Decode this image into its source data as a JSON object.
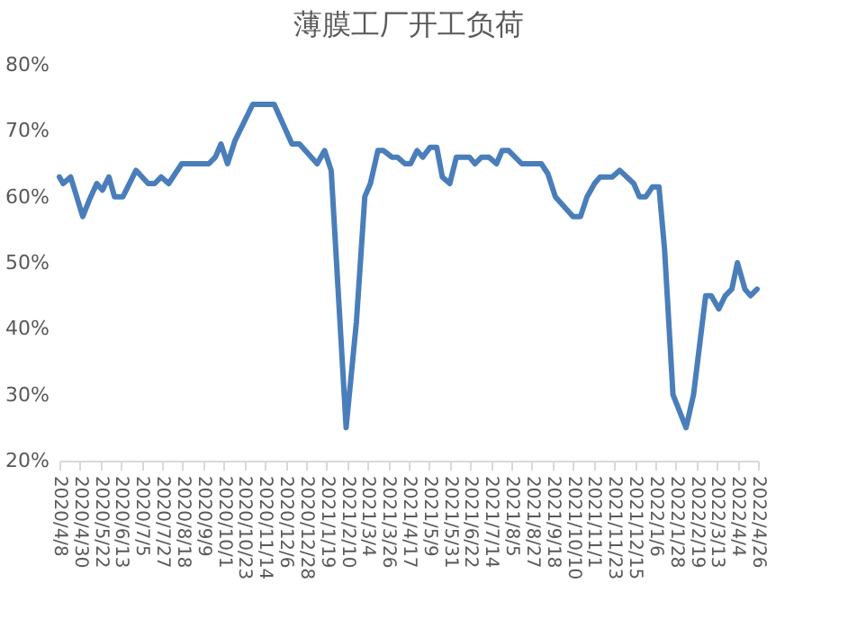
{
  "chart_data": {
    "type": "line",
    "title": "薄膜工厂开工负荷",
    "x": [
      "2020-04-08",
      "2020-04-12",
      "2020-04-20",
      "2020-05-03",
      "2020-05-10",
      "2020-05-18",
      "2020-05-24",
      "2020-05-31",
      "2020-06-06",
      "2020-06-15",
      "2020-06-29",
      "2020-07-12",
      "2020-07-19",
      "2020-07-26",
      "2020-08-03",
      "2020-08-17",
      "2020-09-15",
      "2020-09-22",
      "2020-09-28",
      "2020-10-05",
      "2020-10-13",
      "2020-11-01",
      "2020-11-24",
      "2020-12-13",
      "2020-12-21",
      "2021-01-09",
      "2021-01-17",
      "2021-01-24",
      "2021-02-09",
      "2021-02-20",
      "2021-03-01",
      "2021-03-07",
      "2021-03-15",
      "2021-03-21",
      "2021-03-30",
      "2021-04-05",
      "2021-04-13",
      "2021-04-19",
      "2021-04-26",
      "2021-05-02",
      "2021-05-10",
      "2021-05-17",
      "2021-05-23",
      "2021-05-31",
      "2021-06-07",
      "2021-06-14",
      "2021-06-21",
      "2021-06-27",
      "2021-07-04",
      "2021-07-12",
      "2021-07-20",
      "2021-07-26",
      "2021-08-02",
      "2021-08-16",
      "2021-09-06",
      "2021-09-13",
      "2021-09-21",
      "2021-10-10",
      "2021-10-18",
      "2021-10-25",
      "2021-11-02",
      "2021-11-08",
      "2021-11-21",
      "2021-11-29",
      "2021-12-14",
      "2021-12-20",
      "2021-12-27",
      "2022-01-03",
      "2022-01-10",
      "2022-01-16",
      "2022-01-25",
      "2022-02-08",
      "2022-02-16",
      "2022-03-01",
      "2022-03-07",
      "2022-03-15",
      "2022-03-22",
      "2022-03-29",
      "2022-04-04",
      "2022-04-12",
      "2022-04-18",
      "2022-04-25"
    ],
    "series": [
      {
        "color": "#4a7ebb",
        "values": [
          63,
          62,
          63,
          57,
          59.5,
          62,
          61,
          63,
          60,
          60,
          64,
          62,
          62,
          63,
          62,
          65,
          65,
          66,
          68,
          65,
          68.5,
          74,
          74,
          68,
          68,
          65,
          67,
          64,
          25,
          41,
          60,
          62,
          67,
          67,
          66,
          66,
          65,
          65,
          67,
          66,
          67.5,
          67.5,
          63,
          62,
          66,
          66,
          66,
          65,
          66,
          66,
          65,
          67,
          67,
          65,
          65,
          63.5,
          60,
          57,
          57,
          60,
          62,
          63,
          63,
          64,
          62,
          60,
          60,
          61.5,
          61.5,
          52,
          30,
          25,
          30,
          45,
          45,
          43,
          45,
          46,
          50,
          46,
          45,
          46
        ]
      }
    ],
    "xlim": [
      "2020-04-08",
      "2022-04-26"
    ],
    "xticks": [
      {
        "value": "2020-04-08",
        "label": "2020/4/8"
      },
      {
        "value": "2020-04-30",
        "label": "2020/4/30"
      },
      {
        "value": "2020-05-22",
        "label": "2020/5/22"
      },
      {
        "value": "2020-06-13",
        "label": "2020/6/13"
      },
      {
        "value": "2020-07-05",
        "label": "2020/7/5"
      },
      {
        "value": "2020-07-27",
        "label": "2020/7/27"
      },
      {
        "value": "2020-08-18",
        "label": "2020/8/18"
      },
      {
        "value": "2020-09-09",
        "label": "2020/9/9"
      },
      {
        "value": "2020-10-01",
        "label": "2020/10/1"
      },
      {
        "value": "2020-10-23",
        "label": "2020/10/23"
      },
      {
        "value": "2020-11-14",
        "label": "2020/11/14"
      },
      {
        "value": "2020-12-06",
        "label": "2020/12/6"
      },
      {
        "value": "2020-12-28",
        "label": "2020/12/28"
      },
      {
        "value": "2021-01-19",
        "label": "2021/1/19"
      },
      {
        "value": "2021-02-10",
        "label": "2021/2/10"
      },
      {
        "value": "2021-03-04",
        "label": "2021/3/4"
      },
      {
        "value": "2021-03-26",
        "label": "2021/3/26"
      },
      {
        "value": "2021-04-17",
        "label": "2021/4/17"
      },
      {
        "value": "2021-05-09",
        "label": "2021/5/9"
      },
      {
        "value": "2021-05-31",
        "label": "2021/5/31"
      },
      {
        "value": "2021-06-22",
        "label": "2021/6/22"
      },
      {
        "value": "2021-07-14",
        "label": "2021/7/14"
      },
      {
        "value": "2021-08-05",
        "label": "2021/8/5"
      },
      {
        "value": "2021-08-27",
        "label": "2021/8/27"
      },
      {
        "value": "2021-09-18",
        "label": "2021/9/18"
      },
      {
        "value": "2021-10-10",
        "label": "2021/10/10"
      },
      {
        "value": "2021-11-01",
        "label": "2021/11/1"
      },
      {
        "value": "2021-11-23",
        "label": "2021/11/23"
      },
      {
        "value": "2021-12-15",
        "label": "2021/12/15"
      },
      {
        "value": "2022-01-06",
        "label": "2022/1/6"
      },
      {
        "value": "2022-01-28",
        "label": "2022/1/28"
      },
      {
        "value": "2022-02-19",
        "label": "2022/2/19"
      },
      {
        "value": "2022-03-13",
        "label": "2022/3/13"
      },
      {
        "value": "2022-04-04",
        "label": "2022/4/4"
      },
      {
        "value": "2022-04-26",
        "label": "2022/4/26"
      }
    ],
    "ylim": [
      20,
      80
    ],
    "yticks": [
      {
        "value": 20,
        "label": "20%"
      },
      {
        "value": 30,
        "label": "30%"
      },
      {
        "value": 40,
        "label": "40%"
      },
      {
        "value": 50,
        "label": "50%"
      },
      {
        "value": 60,
        "label": "60%"
      },
      {
        "value": 70,
        "label": "70%"
      },
      {
        "value": 80,
        "label": "80%"
      }
    ],
    "grid": false,
    "legend": false,
    "marker": "none",
    "line_style": "solid"
  }
}
